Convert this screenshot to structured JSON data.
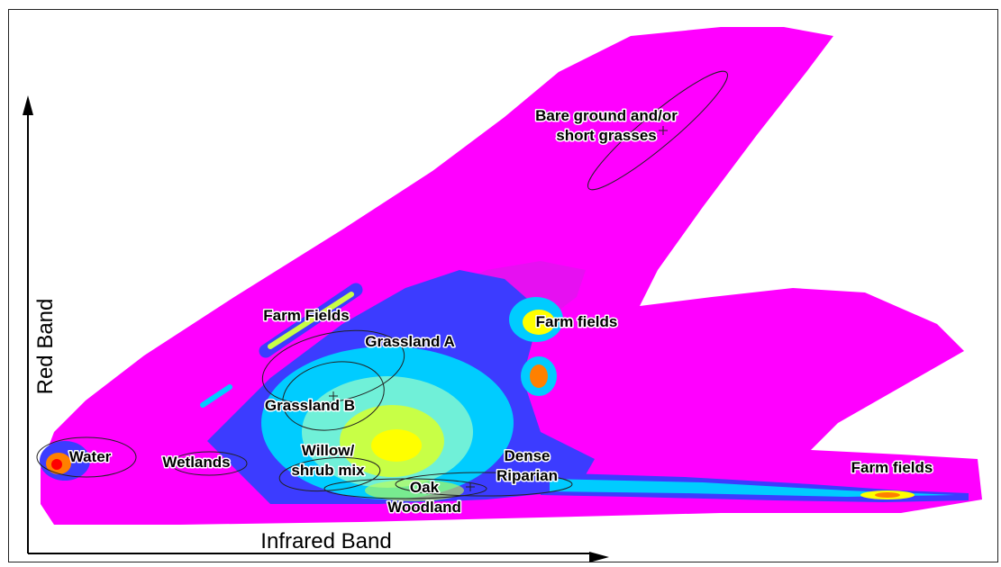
{
  "chart_data": {
    "type": "scatter",
    "title": "",
    "xlabel": "Infrared Band",
    "ylabel": "Red Band",
    "grid": false,
    "density_colors": [
      "#ff00ff",
      "#d21ee6",
      "#3c3cff",
      "#00ccff",
      "#70f0d8",
      "#c8ff46",
      "#ffff00",
      "#ff8000",
      "#ff0000"
    ],
    "annotations": [
      {
        "label": "Bare ground and/or short grasses",
        "lines": [
          "Bare ground and/or",
          "short grasses"
        ]
      },
      {
        "label": "Farm Fields",
        "lines": [
          "Farm Fields"
        ]
      },
      {
        "label": "Grassland A",
        "lines": [
          "Grassland A"
        ]
      },
      {
        "label": "Farm fields",
        "lines": [
          "Farm fields"
        ]
      },
      {
        "label": "Grassland B",
        "lines": [
          "Grassland B"
        ]
      },
      {
        "label": "Water",
        "lines": [
          "Water"
        ]
      },
      {
        "label": "Wetlands",
        "lines": [
          "Wetlands"
        ]
      },
      {
        "label": "Willow/ shrub mix",
        "lines": [
          "Willow/",
          "shrub mix"
        ]
      },
      {
        "label": "Dense Riparian",
        "lines": [
          "Dense",
          "Riparian"
        ]
      },
      {
        "label": "Oak Woodland",
        "lines": [
          "Oak",
          "Woodland"
        ]
      },
      {
        "label": "Farm fields",
        "lines": [
          "Farm fields"
        ]
      }
    ]
  }
}
